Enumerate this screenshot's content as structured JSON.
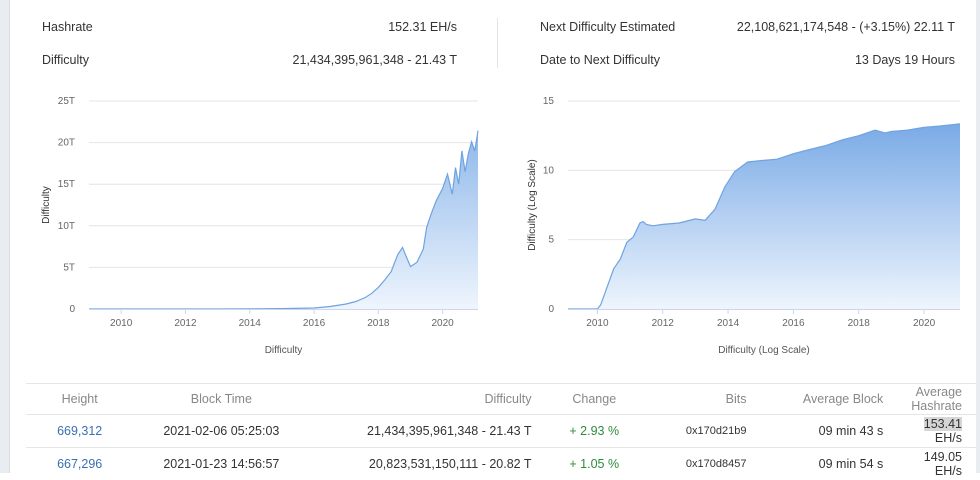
{
  "stats": {
    "hashrate_label": "Hashrate",
    "hashrate_value": "152.31 EH/s",
    "difficulty_label": "Difficulty",
    "difficulty_value": "21,434,395,961,348 - 21.43 T",
    "next_label": "Next Difficulty Estimated",
    "next_value": "22,108,621,174,548 - (+3.15%) 22.11 T",
    "date_label": "Date to Next Difficulty",
    "date_value": "13 Days 19 Hours"
  },
  "chart_data": [
    {
      "type": "area",
      "ylabel": "Difficulty",
      "xlabel": "Difficulty",
      "y_ticks": [
        "0",
        "5T",
        "10T",
        "15T",
        "20T",
        "25T"
      ],
      "x_ticks": [
        "2010",
        "2012",
        "2014",
        "2016",
        "2018",
        "2020"
      ],
      "ylim": [
        0,
        25
      ],
      "xlim": [
        2009.0,
        2021.1
      ],
      "x": [
        2009.0,
        2010.0,
        2011.0,
        2012.0,
        2013.0,
        2014.0,
        2015.0,
        2016.0,
        2016.5,
        2017.0,
        2017.3,
        2017.6,
        2017.8,
        2018.0,
        2018.2,
        2018.4,
        2018.6,
        2018.75,
        2018.9,
        2019.0,
        2019.2,
        2019.4,
        2019.5,
        2019.65,
        2019.8,
        2020.0,
        2020.15,
        2020.3,
        2020.4,
        2020.5,
        2020.6,
        2020.7,
        2020.8,
        2020.9,
        2021.0,
        2021.1
      ],
      "y": [
        0,
        0,
        0,
        0,
        0,
        0.01,
        0.05,
        0.12,
        0.3,
        0.6,
        0.9,
        1.4,
        1.9,
        2.6,
        3.5,
        4.5,
        6.5,
        7.4,
        6.0,
        5.1,
        5.6,
        7.2,
        9.8,
        11.5,
        13.0,
        14.5,
        16.2,
        13.8,
        17.0,
        15.0,
        19.0,
        16.5,
        18.7,
        20.1,
        19.0,
        21.43
      ]
    },
    {
      "type": "area",
      "ylabel": "Difficulty (Log Scale)",
      "xlabel": "Difficulty (Log Scale)",
      "y_ticks": [
        "0",
        "5",
        "10",
        "15"
      ],
      "x_ticks": [
        "2010",
        "2012",
        "2014",
        "2016",
        "2018",
        "2020"
      ],
      "ylim": [
        0,
        15
      ],
      "xlim": [
        2009.1,
        2021.1
      ],
      "x": [
        2009.1,
        2010.0,
        2010.1,
        2010.3,
        2010.5,
        2010.7,
        2010.9,
        2011.1,
        2011.3,
        2011.4,
        2011.5,
        2011.7,
        2012.0,
        2012.5,
        2013.0,
        2013.3,
        2013.6,
        2013.9,
        2014.2,
        2014.6,
        2015.0,
        2015.5,
        2016.0,
        2016.5,
        2017.0,
        2017.5,
        2018.0,
        2018.5,
        2018.8,
        2019.0,
        2019.5,
        2020.0,
        2020.5,
        2021.1
      ],
      "y": [
        0,
        0,
        0.3,
        1.6,
        2.9,
        3.6,
        4.8,
        5.2,
        6.2,
        6.3,
        6.1,
        6.0,
        6.1,
        6.2,
        6.5,
        6.4,
        7.2,
        8.8,
        9.9,
        10.6,
        10.7,
        10.8,
        11.2,
        11.5,
        11.8,
        12.2,
        12.5,
        12.9,
        12.7,
        12.8,
        12.9,
        13.1,
        13.2,
        13.35
      ]
    }
  ],
  "table": {
    "headers": [
      "Height",
      "Block Time",
      "Difficulty",
      "Change",
      "Bits",
      "Average Block",
      "Average Hashrate"
    ],
    "rows": [
      {
        "height": "669,312",
        "time": "2021-02-06 05:25:03",
        "difficulty": "21,434,395,961,348 - 21.43 T",
        "change": "+ 2.93 %",
        "bits": "0x170d21b9",
        "avg_block": "09 min 43 s",
        "hashrate_hl": "153.41",
        "hashrate_rest": " EH/s"
      },
      {
        "height": "667,296",
        "time": "2021-01-23 14:56:57",
        "difficulty": "20,823,531,150,111 - 20.82 T",
        "change": "+ 1.05 %",
        "bits": "0x170d8457",
        "avg_block": "09 min 54 s",
        "hashrate_hl": "",
        "hashrate_rest": "149.05 EH/s"
      }
    ]
  }
}
